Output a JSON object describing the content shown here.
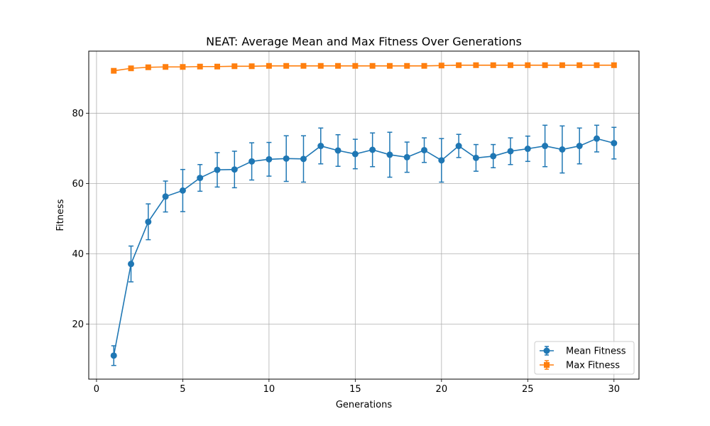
{
  "chart_data": {
    "type": "line",
    "title": "NEAT: Average Mean and Max Fitness Over Generations",
    "xlabel": "Generations",
    "ylabel": "Fitness",
    "xlim": [
      -0.45,
      31.45
    ],
    "ylim": [
      4.3,
      97.7
    ],
    "xticks": [
      0,
      5,
      10,
      15,
      20,
      25,
      30
    ],
    "yticks": [
      20,
      40,
      60,
      80
    ],
    "grid": true,
    "legend_position": "lower-right",
    "x": [
      1,
      2,
      3,
      4,
      5,
      6,
      7,
      8,
      9,
      10,
      11,
      12,
      13,
      14,
      15,
      16,
      17,
      18,
      19,
      20,
      21,
      22,
      23,
      24,
      25,
      26,
      27,
      28,
      29,
      30
    ],
    "series": [
      {
        "name": "Mean Fitness",
        "color": "#1f77b4",
        "marker": "circle",
        "values": [
          11.0,
          37.1,
          49.1,
          56.3,
          58.0,
          61.6,
          63.9,
          64.0,
          66.3,
          66.9,
          67.1,
          67.0,
          70.7,
          69.4,
          68.4,
          69.6,
          68.2,
          67.5,
          69.5,
          66.6,
          70.7,
          67.3,
          67.8,
          69.2,
          69.9,
          70.7,
          69.7,
          70.7,
          72.8,
          71.5
        ],
        "errors": [
          2.8,
          5.1,
          5.1,
          4.4,
          6.0,
          3.8,
          4.9,
          5.2,
          5.3,
          4.8,
          6.5,
          6.6,
          5.1,
          4.5,
          4.2,
          4.8,
          6.4,
          4.3,
          3.5,
          6.2,
          3.3,
          3.8,
          3.3,
          3.8,
          3.6,
          5.9,
          6.7,
          5.1,
          3.8,
          4.5
        ]
      },
      {
        "name": "Max Fitness",
        "color": "#ff7f0e",
        "marker": "square",
        "values": [
          92.1,
          92.8,
          93.1,
          93.2,
          93.2,
          93.3,
          93.3,
          93.4,
          93.4,
          93.5,
          93.5,
          93.5,
          93.5,
          93.5,
          93.5,
          93.5,
          93.5,
          93.5,
          93.5,
          93.6,
          93.7,
          93.7,
          93.7,
          93.7,
          93.7,
          93.7,
          93.7,
          93.7,
          93.7,
          93.7
        ],
        "errors": [
          0.1,
          0.1,
          0.1,
          0.1,
          0.1,
          0.1,
          0.1,
          0.1,
          0.1,
          0.1,
          0.1,
          0.1,
          0.1,
          0.1,
          0.1,
          0.1,
          0.1,
          0.1,
          0.1,
          0.1,
          0.1,
          0.1,
          0.1,
          0.1,
          0.1,
          0.1,
          0.1,
          0.1,
          0.1,
          0.1
        ]
      }
    ]
  }
}
